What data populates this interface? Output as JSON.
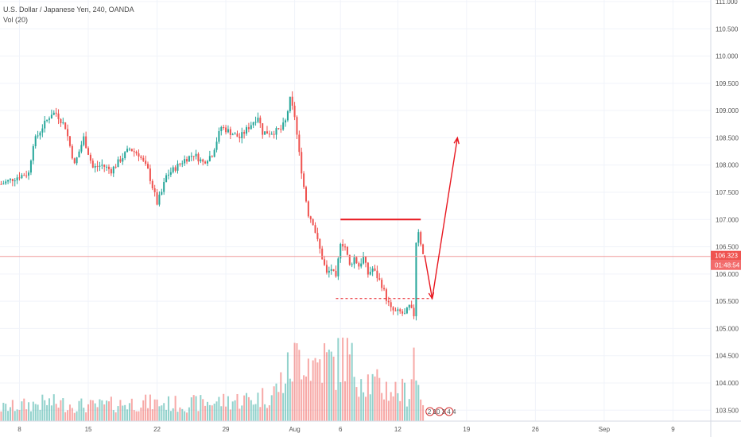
{
  "legend": {
    "symbol_line": "U.S. Dollar / Japanese Yen, 240, OANDA",
    "volume_line": "Vol (20)"
  },
  "price_scale": {
    "labels": [
      "111.000",
      "110.500",
      "110.000",
      "109.500",
      "109.000",
      "108.500",
      "108.000",
      "107.500",
      "107.000",
      "106.500",
      "106.000",
      "105.500",
      "105.000",
      "104.500",
      "104.000",
      "103.500"
    ],
    "current_price": "106.323",
    "countdown": "01:48:54",
    "current_value": 106.323
  },
  "time_scale": {
    "labels": [
      "8",
      "15",
      "22",
      "29",
      "Aug",
      "6",
      "12",
      "19",
      "26",
      "Sep",
      "9"
    ]
  },
  "event_markers": {
    "text": "2 10 3 4 4"
  },
  "colors": {
    "up": "#26a69a",
    "down": "#ef5350",
    "drawing": "#e8171f",
    "price_line": "#ef9a9a",
    "grid": "#f0f3fa"
  },
  "chart_data": {
    "type": "candlestick",
    "title": "U.S. Dollar / Japanese Yen, 240, OANDA",
    "ylim": [
      103.3,
      111.0
    ],
    "ticks": [
      "8",
      "15",
      "22",
      "29",
      "Aug",
      "6",
      "12",
      "19",
      "26",
      "Sep",
      "9"
    ],
    "tick_index": [
      8,
      38,
      68,
      98,
      128,
      148,
      173,
      203,
      233,
      263,
      293
    ],
    "waypoints": [
      [
        0,
        107.65
      ],
      [
        8,
        107.8
      ],
      [
        12,
        107.85
      ],
      [
        14,
        108.4
      ],
      [
        18,
        108.7
      ],
      [
        22,
        108.95
      ],
      [
        24,
        108.95
      ],
      [
        28,
        108.7
      ],
      [
        32,
        108.0
      ],
      [
        36,
        108.5
      ],
      [
        40,
        107.95
      ],
      [
        44,
        108.0
      ],
      [
        48,
        107.9
      ],
      [
        52,
        108.1
      ],
      [
        56,
        108.3
      ],
      [
        60,
        108.2
      ],
      [
        64,
        107.9
      ],
      [
        68,
        107.3
      ],
      [
        70,
        107.5
      ],
      [
        72,
        107.8
      ],
      [
        76,
        107.95
      ],
      [
        80,
        108.1
      ],
      [
        84,
        108.2
      ],
      [
        88,
        108.05
      ],
      [
        92,
        108.2
      ],
      [
        96,
        108.7
      ],
      [
        100,
        108.6
      ],
      [
        104,
        108.5
      ],
      [
        108,
        108.7
      ],
      [
        112,
        108.9
      ],
      [
        114,
        108.6
      ],
      [
        118,
        108.6
      ],
      [
        122,
        108.65
      ],
      [
        124,
        108.8
      ],
      [
        126,
        109.2
      ],
      [
        128,
        108.9
      ],
      [
        130,
        108.2
      ],
      [
        132,
        107.6
      ],
      [
        134,
        107.1
      ],
      [
        136,
        106.95
      ],
      [
        138,
        106.6
      ],
      [
        140,
        106.3
      ],
      [
        142,
        106.0
      ],
      [
        144,
        106.1
      ],
      [
        146,
        105.9
      ],
      [
        148,
        106.6
      ],
      [
        150,
        106.5
      ],
      [
        152,
        106.15
      ],
      [
        154,
        106.3
      ],
      [
        156,
        106.15
      ],
      [
        158,
        106.3
      ],
      [
        160,
        106.0
      ],
      [
        162,
        106.1
      ],
      [
        164,
        105.95
      ],
      [
        166,
        105.8
      ],
      [
        168,
        105.55
      ],
      [
        170,
        105.35
      ],
      [
        172,
        105.3
      ],
      [
        174,
        105.3
      ],
      [
        176,
        105.25
      ],
      [
        178,
        105.4
      ],
      [
        180,
        105.25
      ],
      [
        181,
        106.6
      ],
      [
        182,
        106.8
      ],
      [
        184,
        106.35
      ]
    ],
    "volume_profile": [
      [
        0,
        7
      ],
      [
        20,
        10
      ],
      [
        40,
        8
      ],
      [
        60,
        10
      ],
      [
        80,
        9
      ],
      [
        100,
        11
      ],
      [
        110,
        12
      ],
      [
        118,
        14
      ],
      [
        124,
        24
      ],
      [
        128,
        32
      ],
      [
        132,
        38
      ],
      [
        136,
        30
      ],
      [
        140,
        33
      ],
      [
        146,
        30
      ],
      [
        150,
        36
      ],
      [
        154,
        28
      ],
      [
        158,
        24
      ],
      [
        162,
        20
      ],
      [
        166,
        18
      ],
      [
        170,
        17
      ],
      [
        174,
        16
      ],
      [
        178,
        15
      ],
      [
        180,
        40
      ],
      [
        181,
        22
      ],
      [
        184,
        12
      ]
    ],
    "annotations": {
      "resistance_level": 107.0,
      "support_level": 105.55,
      "projected_path": [
        106.4,
        105.55,
        108.5
      ],
      "resistance_span": [
        148,
        183
      ],
      "support_span": [
        146,
        188
      ],
      "path_index": [
        184,
        188,
        199
      ]
    }
  }
}
